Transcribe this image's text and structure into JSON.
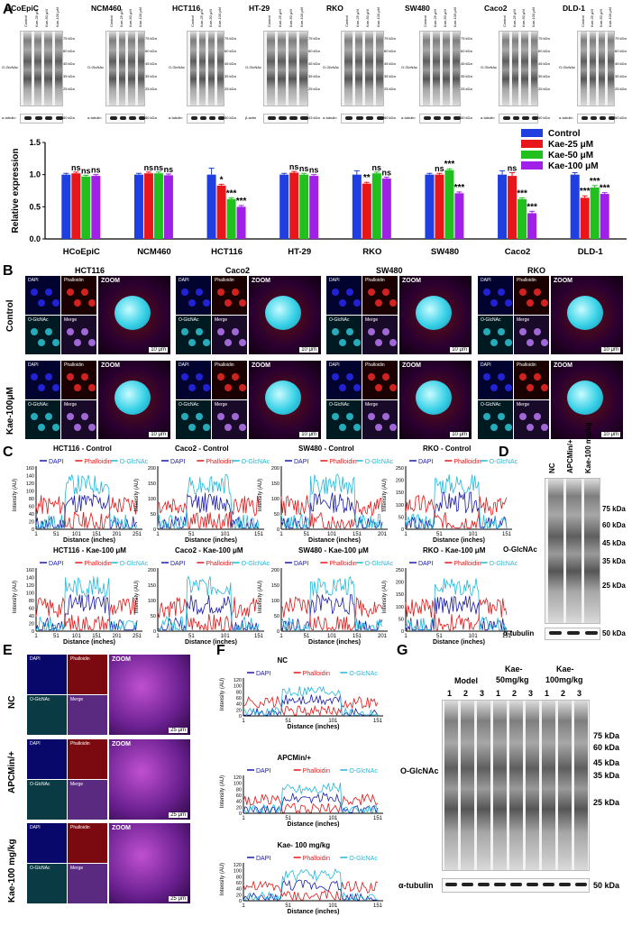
{
  "panels": {
    "A": "A",
    "B": "B",
    "C": "C",
    "D": "D",
    "E": "E",
    "F": "F",
    "G": "G"
  },
  "panelA": {
    "cell_lines": [
      "HCoEpiC",
      "NCM460",
      "HCT116",
      "HT-29",
      "RKO",
      "SW480",
      "Caco2",
      "DLD-1"
    ],
    "lane_labels": [
      "Control",
      "Kae-25 μM",
      "Kae-50 μM",
      "Kae-100 μM"
    ],
    "marker_labels": [
      "75 kDa",
      "60 kDa",
      "45 kDa",
      "35 kDa",
      "25 kDa"
    ],
    "loading_marker": "50 kDa",
    "loading_marker_ht29": "43 kDa",
    "protein_label": "O-GlcNAc",
    "tubulin_label": "α-tubulin",
    "actin_label": "β-actin"
  },
  "chart_data": {
    "type": "bar",
    "categories": [
      "HCoEpiC",
      "NCM460",
      "HCT116",
      "HT-29",
      "RKO",
      "SW480",
      "Caco2",
      "DLD-1"
    ],
    "series": [
      {
        "name": "Control",
        "color": "#1f3fe0",
        "values": [
          1.0,
          1.0,
          1.0,
          1.0,
          1.0,
          1.0,
          1.0,
          1.0
        ],
        "err": [
          0.02,
          0.02,
          0.1,
          0.02,
          0.06,
          0.02,
          0.06,
          0.03
        ],
        "sig": [
          "",
          "",
          "",
          "",
          "",
          "",
          "",
          ""
        ]
      },
      {
        "name": "Kae-25 μM",
        "color": "#e8161b",
        "values": [
          1.02,
          1.02,
          0.83,
          1.03,
          0.86,
          1.0,
          0.98,
          0.64
        ],
        "err": [
          0.02,
          0.02,
          0.02,
          0.02,
          0.02,
          0.02,
          0.05,
          0.03
        ],
        "sig": [
          "ns",
          "ns",
          "*",
          "ns",
          "**",
          "ns",
          "ns",
          "***"
        ]
      },
      {
        "name": "Kae-50 μM",
        "color": "#22c01f",
        "values": [
          0.97,
          1.02,
          0.62,
          1.0,
          1.02,
          1.07,
          0.62,
          0.8
        ],
        "err": [
          0.02,
          0.02,
          0.02,
          0.02,
          0.02,
          0.02,
          0.02,
          0.03
        ],
        "sig": [
          "ns",
          "ns",
          "***",
          "ns",
          "ns",
          "***",
          "***",
          "***"
        ]
      },
      {
        "name": "Kae-100 μM",
        "color": "#a020e8",
        "values": [
          0.98,
          0.99,
          0.5,
          0.98,
          0.94,
          0.71,
          0.4,
          0.7
        ],
        "err": [
          0.02,
          0.02,
          0.02,
          0.02,
          0.02,
          0.02,
          0.03,
          0.02
        ],
        "sig": [
          "ns",
          "ns",
          "***",
          "ns",
          "ns",
          "***",
          "***",
          "***"
        ]
      }
    ],
    "ylabel": "Relative expression",
    "ylim": [
      0,
      1.5
    ],
    "yticks": [
      "0.0",
      "0.5",
      "1.0",
      "1.5"
    ]
  },
  "panelB": {
    "columns": [
      "HCT116",
      "Caco2",
      "SW480",
      "RKO"
    ],
    "rows": [
      "Control",
      "Kae-100μM"
    ],
    "sub_labels": {
      "dapi": "DAPI",
      "phalloidin": "Phalloidin",
      "oglcnac": "O-GlcNAc",
      "merge": "Merge",
      "zoom": "ZOOM"
    },
    "scale": "10 μm"
  },
  "panelC": {
    "titles_top": [
      "HCT116 - Control",
      "Caco2 - Control",
      "SW480 - Control",
      "RKO - Control"
    ],
    "titles_bottom": [
      "HCT116 - Kae-100 μM",
      "Caco2 - Kae-100 μM",
      "SW480 - Kae-100 μM",
      "RKO - Kae-100 μM"
    ],
    "legend": [
      "DAPI",
      "Phalloidin",
      "O-GlcNAc"
    ],
    "xlabel": "Distance (inches)",
    "ylabel": "Intensity (AU)",
    "xticks_a": [
      "1",
      "51",
      "101",
      "151",
      "201",
      "251"
    ],
    "xticks_b": [
      "1",
      "51",
      "101",
      "151"
    ],
    "xticks_c": [
      "1",
      "51",
      "101",
      "151",
      "201"
    ],
    "yticks_160": [
      "0",
      "20",
      "40",
      "60",
      "80",
      "100",
      "120",
      "140",
      "160"
    ],
    "yticks_200": [
      "0",
      "50",
      "100",
      "150",
      "200"
    ],
    "yticks_250": [
      "0",
      "50",
      "100",
      "150",
      "200",
      "250"
    ]
  },
  "panelD": {
    "lanes": [
      "NC",
      "APCMin/+",
      "Kae-100 mg/kg"
    ],
    "markers": [
      "75 kDa",
      "60 kDa",
      "45 kDa",
      "35 kDa",
      "25 kDa"
    ],
    "loading_marker": "50 kDa",
    "protein_label": "O-GlcNAc",
    "tubulin_label": "α-tubulin"
  },
  "panelE": {
    "rows": [
      "NC",
      "APCMin/+",
      "Kae-100 mg/kg"
    ],
    "sub_labels": {
      "dapi": "DAPI",
      "phalloidin": "Phalloidin",
      "oglcnac": "O-GlcNAc",
      "merge": "Merge",
      "zoom": "ZOOM"
    },
    "scale": "25 μm"
  },
  "panelF": {
    "titles": [
      "NC",
      "APCMin/+",
      "Kae- 100 mg/kg"
    ],
    "legend": [
      "DAPI",
      "Phalloidin",
      "O-GlcNAc"
    ],
    "xlabel": "Distance (inches)",
    "ylabel": "Intensity (AU)",
    "xticks": [
      "1",
      "51",
      "101",
      "151"
    ],
    "yticks": [
      "0",
      "20",
      "40",
      "60",
      "80",
      "100",
      "120"
    ]
  },
  "panelG": {
    "groups": [
      "Model",
      "Kae-\n50mg/kg",
      "Kae-\n100mg/kg"
    ],
    "group_a": "Model",
    "group_b1": "Kae-",
    "group_b2": "50mg/kg",
    "group_c1": "Kae-",
    "group_c2": "100mg/kg",
    "lane_numbers": [
      "1",
      "2",
      "3",
      "1",
      "2",
      "3",
      "1",
      "2",
      "3"
    ],
    "markers": [
      "75 kDa",
      "60 kDa",
      "45 kDa",
      "35 kDa",
      "25 kDa"
    ],
    "loading_marker": "50 kDa",
    "protein_label": "O-GlcNAc",
    "tubulin_label": "α-tubulin"
  },
  "colors": {
    "dapi": "#1a1aa8",
    "phalloidin": "#e01818",
    "oglcnac": "#22b8d8"
  }
}
